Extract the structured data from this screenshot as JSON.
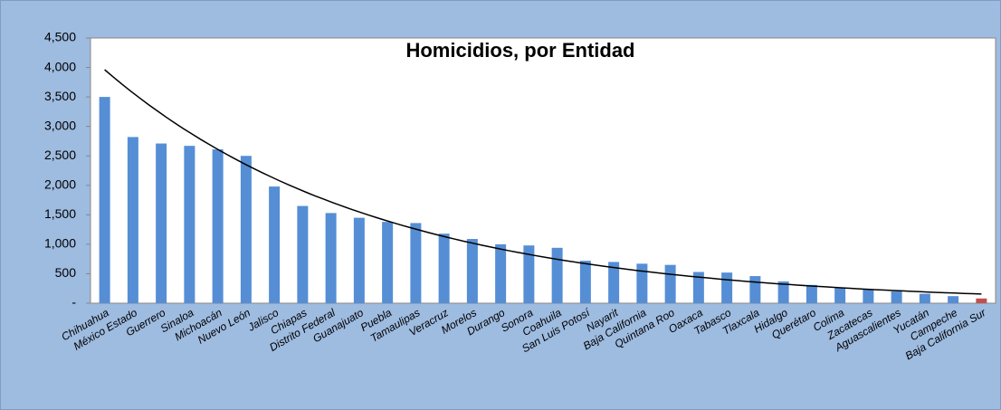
{
  "chart_data": {
    "type": "bar",
    "title": "Homicidios,  por Entidad",
    "categories": [
      "Chihuahua",
      "México Estado",
      "Guerrero",
      "Sinaloa",
      "Michoacán",
      "Nuevo León",
      "Jalisco",
      "Chiapas",
      "Distrito Federal",
      "Guanajuato",
      "Puebla",
      "Tamaulipas",
      "Veracruz",
      "Morelos",
      "Durango",
      "Sonora",
      "Coahuila",
      "San Luis Potosí",
      "Nayarit",
      "Baja California",
      "Quintana Roo",
      "Oaxaca",
      "Tabasco",
      "Tlaxcala",
      "Hidalgo",
      "Querétaro",
      "Colima",
      "Zacatecas",
      "Aguascalientes",
      "Yucatán",
      "Campeche",
      "Baja California Sur"
    ],
    "values": [
      3500,
      2820,
      2710,
      2670,
      2610,
      2500,
      1980,
      1650,
      1530,
      1450,
      1380,
      1360,
      1180,
      1090,
      1000,
      980,
      940,
      720,
      700,
      670,
      650,
      530,
      520,
      460,
      370,
      310,
      260,
      230,
      200,
      160,
      120,
      80
    ],
    "colors": [
      "#558ed5",
      "#558ed5",
      "#558ed5",
      "#558ed5",
      "#558ed5",
      "#558ed5",
      "#558ed5",
      "#558ed5",
      "#558ed5",
      "#558ed5",
      "#558ed5",
      "#558ed5",
      "#558ed5",
      "#558ed5",
      "#558ed5",
      "#558ed5",
      "#558ed5",
      "#558ed5",
      "#558ed5",
      "#558ed5",
      "#558ed5",
      "#558ed5",
      "#558ed5",
      "#558ed5",
      "#558ed5",
      "#558ed5",
      "#558ed5",
      "#558ed5",
      "#558ed5",
      "#558ed5",
      "#558ed5",
      "#c0504d"
    ],
    "trendline": {
      "type": "exponential",
      "color": "#000000"
    },
    "ylim": [
      0,
      4500
    ],
    "yticks": [
      {
        "value": 0,
        "label": "-"
      },
      500,
      {
        "value": 1000,
        "label": "1,000"
      },
      {
        "value": 1500,
        "label": "1,500"
      },
      {
        "value": 2000,
        "label": "2,000"
      },
      {
        "value": 2500,
        "label": "2,500"
      },
      {
        "value": 3000,
        "label": "3,000"
      },
      {
        "value": 3500,
        "label": "3,500"
      },
      {
        "value": 4000,
        "label": "4,000"
      },
      {
        "value": 4500,
        "label": "4,500"
      }
    ],
    "grid": false
  }
}
